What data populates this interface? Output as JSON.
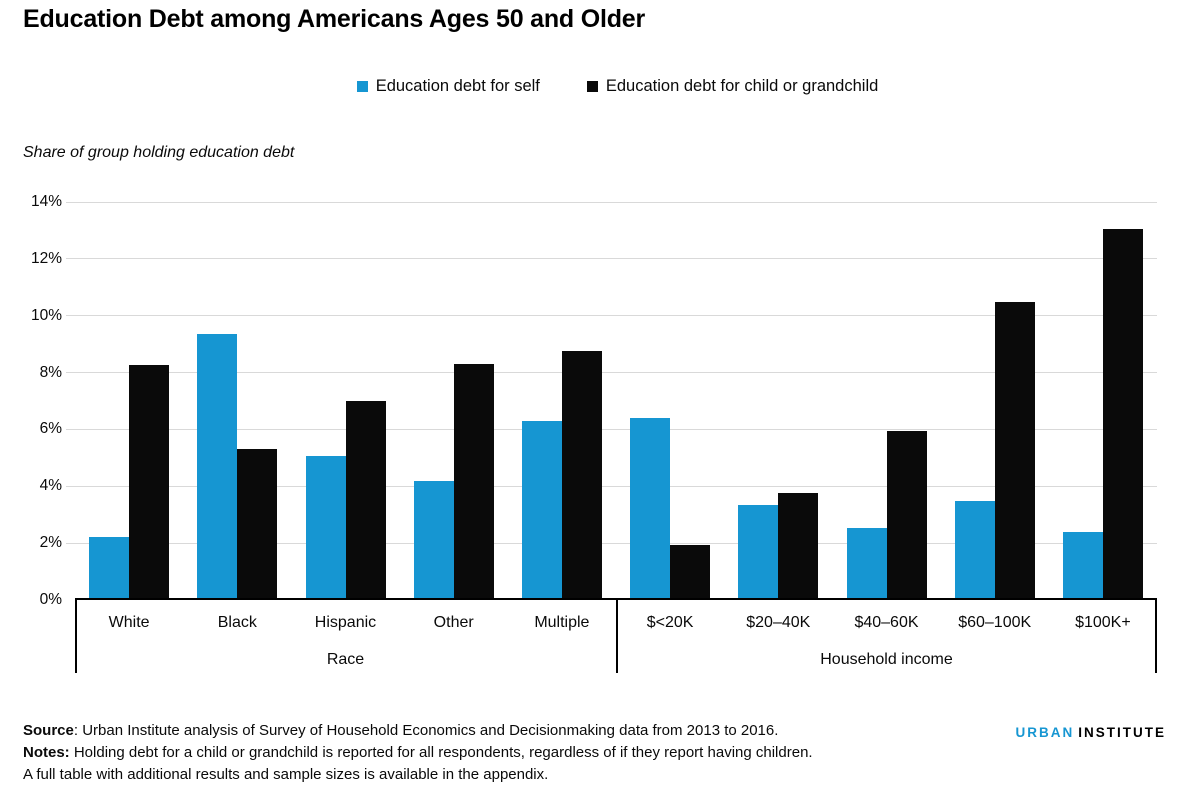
{
  "title": "Education Debt among Americans Ages 50 and Older",
  "legend": [
    {
      "label": "Education debt for self",
      "color": "#1696d2"
    },
    {
      "label": "Education debt for child or grandchild",
      "color": "#0a0a0a"
    }
  ],
  "axis_note": "Share of group holding education debt",
  "chart_data": {
    "type": "bar",
    "title": "Education Debt among Americans Ages 50 and Older",
    "ylabel": "Share of group holding education debt",
    "xlabel": "",
    "ylim": [
      0,
      14
    ],
    "ytick_step": 2,
    "ytick_suffix": "%",
    "grid": true,
    "legend_position": "top",
    "groups": [
      {
        "label": "Race",
        "categories": [
          "White",
          "Black",
          "Hispanic",
          "Other",
          "Multiple"
        ]
      },
      {
        "label": "Household income",
        "categories": [
          "$<20K",
          "$20–40K",
          "$40–60K",
          "$60–100K",
          "$100K+"
        ]
      }
    ],
    "categories": [
      "White",
      "Black",
      "Hispanic",
      "Other",
      "Multiple",
      "$<20K",
      "$20–40K",
      "$40–60K",
      "$60–100K",
      "$100K+"
    ],
    "series": [
      {
        "name": "Education debt for self",
        "color": "#1696d2",
        "values": [
          2.2,
          9.35,
          5.05,
          4.2,
          6.3,
          6.4,
          3.35,
          2.55,
          3.5,
          2.4
        ]
      },
      {
        "name": "Education debt for child or grandchild",
        "color": "#0a0a0a",
        "values": [
          8.25,
          5.3,
          7.0,
          8.3,
          8.75,
          1.95,
          3.75,
          5.95,
          10.5,
          13.05
        ]
      }
    ]
  },
  "footer": {
    "source_label": "Source",
    "source_text": ": Urban Institute analysis of Survey of Household Economics and Decisionmaking data from 2013 to 2016.",
    "notes_label": "Notes:",
    "notes_text": " Holding debt for a child or grandchild is reported for all respondents, regardless of if they report having children.",
    "appendix_text": "A full table with additional results and sample sizes is available in the appendix.",
    "logo_word1": "URBAN",
    "logo_word2": "INSTITUTE"
  },
  "colors": {
    "accent_blue": "#1696d2",
    "bar_black": "#0a0a0a",
    "gridline": "#d9d9d9",
    "axis_line": "#000000"
  }
}
